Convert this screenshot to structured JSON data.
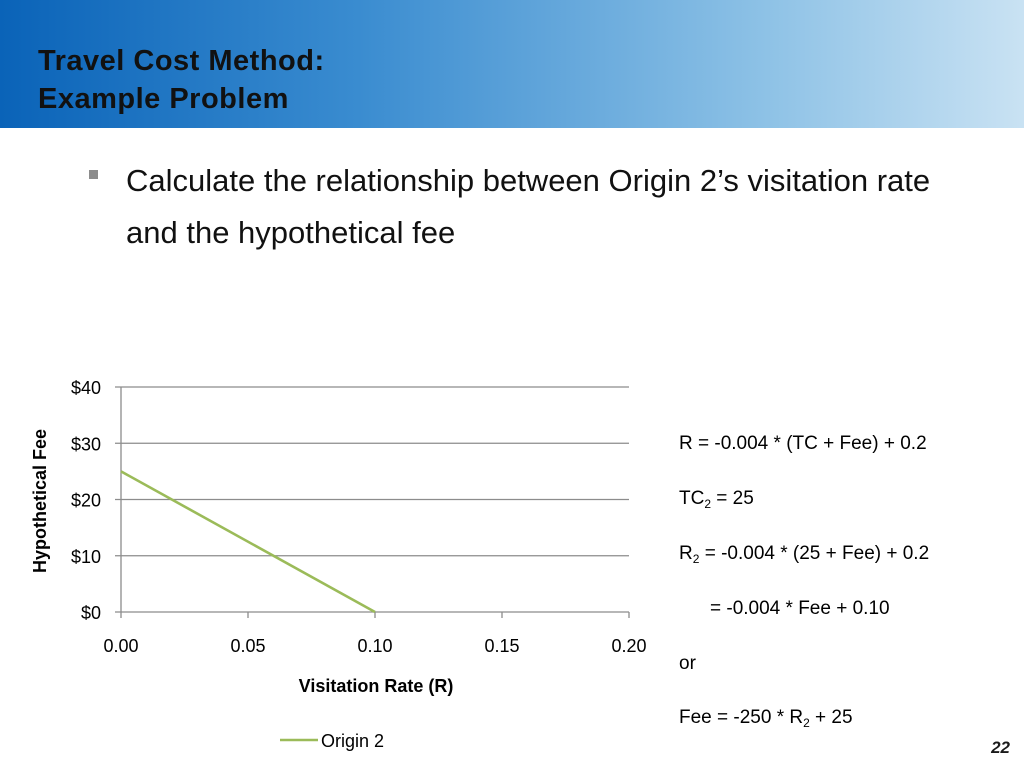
{
  "slide": {
    "title_line1": "Travel Cost Method:",
    "title_line2": "Example Problem",
    "bullet": "Calculate the relationship between Origin 2’s visitation rate and the hypothetical fee",
    "page_number": "22",
    "accent_color": "#0a63b8"
  },
  "equations": {
    "line1": "R = -0.004 * (TC + Fee) + 0.2",
    "line2_pre": "TC",
    "line2_sub": "2",
    "line2_post": " = 25",
    "line3_pre": "R",
    "line3_sub": "2",
    "line3_post": " = -0.004 * (25 + Fee) + 0.2",
    "line4": "= -0.004 * Fee + 0.10",
    "line5": "or",
    "line6_pre": "Fee = -250 * R",
    "line6_sub": "2",
    "line6_post": " + 25"
  },
  "chart_data": {
    "type": "line",
    "xlabel": "Visitation Rate (R)",
    "ylabel": "Hypothetical Fee",
    "xlim": [
      0,
      0.2
    ],
    "ylim": [
      0,
      40
    ],
    "x_ticks": [
      "0.00",
      "0.05",
      "0.10",
      "0.15",
      "0.20"
    ],
    "y_ticks": [
      "$0",
      "$10",
      "$20",
      "$30",
      "$40"
    ],
    "grid": true,
    "legend_position": "bottom",
    "series": [
      {
        "name": "Origin 2",
        "color": "#9bbb59",
        "x": [
          0.0,
          0.1
        ],
        "y": [
          25,
          0
        ]
      }
    ]
  }
}
